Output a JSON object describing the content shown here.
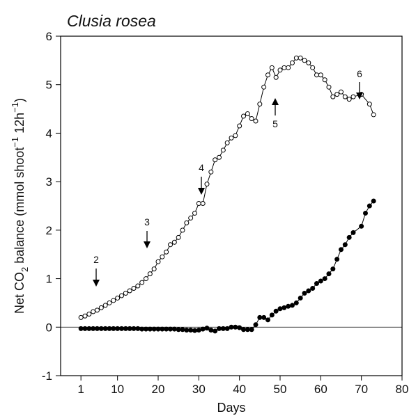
{
  "chart_data": {
    "type": "line",
    "title": "Clusia rosea",
    "x_label": "Days",
    "y_label": [
      "Net CO",
      "2",
      " balance (mmol shoot",
      "−1",
      " 12h",
      "−1",
      ")"
    ],
    "xlim": [
      -4,
      80
    ],
    "xticks": [
      1,
      10,
      20,
      30,
      40,
      50,
      60,
      70,
      80
    ],
    "ylim": [
      -1,
      6
    ],
    "yticks": [
      -1,
      0,
      1,
      2,
      3,
      4,
      5,
      6
    ],
    "zero_line": true,
    "annotations": [
      "2",
      "3",
      "4",
      "5",
      "6"
    ],
    "series": [
      {
        "color": "#000000",
        "fill": "#ffffff",
        "x": [
          1,
          2,
          3,
          4,
          5,
          6,
          7,
          8,
          9,
          10,
          11,
          12,
          13,
          14,
          15,
          16,
          17,
          18,
          19,
          20,
          21,
          22,
          23,
          24,
          25,
          26,
          27,
          28,
          29,
          30,
          31,
          32,
          33,
          34,
          35,
          36,
          37,
          38,
          39,
          40,
          41,
          42,
          43,
          44,
          45,
          46,
          47,
          48,
          49,
          50,
          51,
          52,
          53,
          54,
          55,
          56,
          57,
          58,
          59,
          60,
          61,
          62,
          63,
          64,
          65,
          66,
          67,
          68,
          70,
          72,
          73
        ],
        "values": [
          0.2,
          0.23,
          0.27,
          0.32,
          0.35,
          0.4,
          0.45,
          0.5,
          0.55,
          0.6,
          0.65,
          0.7,
          0.75,
          0.8,
          0.85,
          0.92,
          1.0,
          1.1,
          1.2,
          1.35,
          1.45,
          1.55,
          1.7,
          1.75,
          1.85,
          2.0,
          2.15,
          2.25,
          2.35,
          2.55,
          2.55,
          2.95,
          3.2,
          3.45,
          3.5,
          3.65,
          3.8,
          3.9,
          3.95,
          4.15,
          4.35,
          4.4,
          4.3,
          4.25,
          4.6,
          4.95,
          5.2,
          5.35,
          5.15,
          5.3,
          5.35,
          5.35,
          5.45,
          5.55,
          5.55,
          5.5,
          5.45,
          5.35,
          5.2,
          5.2,
          5.1,
          4.95,
          4.75,
          4.8,
          4.85,
          4.75,
          4.7,
          4.75,
          4.8,
          4.6,
          4.38
        ]
      },
      {
        "color": "#000000",
        "fill": "#000000",
        "x": [
          1,
          2,
          3,
          4,
          5,
          6,
          7,
          8,
          9,
          10,
          11,
          12,
          13,
          14,
          15,
          16,
          17,
          18,
          19,
          20,
          21,
          22,
          23,
          24,
          25,
          26,
          27,
          28,
          29,
          30,
          31,
          32,
          33,
          34,
          35,
          36,
          37,
          38,
          39,
          40,
          41,
          42,
          43,
          44,
          45,
          46,
          47,
          48,
          49,
          50,
          51,
          52,
          53,
          54,
          55,
          56,
          57,
          58,
          59,
          60,
          61,
          62,
          63,
          64,
          65,
          66,
          67,
          68,
          70,
          71,
          72,
          73
        ],
        "values": [
          -0.03,
          -0.03,
          -0.03,
          -0.03,
          -0.03,
          -0.03,
          -0.03,
          -0.03,
          -0.03,
          -0.03,
          -0.03,
          -0.03,
          -0.03,
          -0.03,
          -0.03,
          -0.04,
          -0.04,
          -0.04,
          -0.04,
          -0.04,
          -0.04,
          -0.04,
          -0.04,
          -0.04,
          -0.05,
          -0.05,
          -0.06,
          -0.06,
          -0.07,
          -0.06,
          -0.04,
          -0.02,
          -0.06,
          -0.08,
          -0.03,
          -0.03,
          -0.03,
          0.0,
          0.0,
          -0.01,
          -0.05,
          -0.05,
          -0.05,
          0.05,
          0.2,
          0.2,
          0.15,
          0.25,
          0.33,
          0.38,
          0.4,
          0.43,
          0.45,
          0.5,
          0.6,
          0.7,
          0.75,
          0.8,
          0.9,
          0.95,
          1.0,
          1.1,
          1.2,
          1.4,
          1.6,
          1.7,
          1.85,
          1.95,
          2.08,
          2.35,
          2.5,
          2.6
        ]
      }
    ]
  }
}
